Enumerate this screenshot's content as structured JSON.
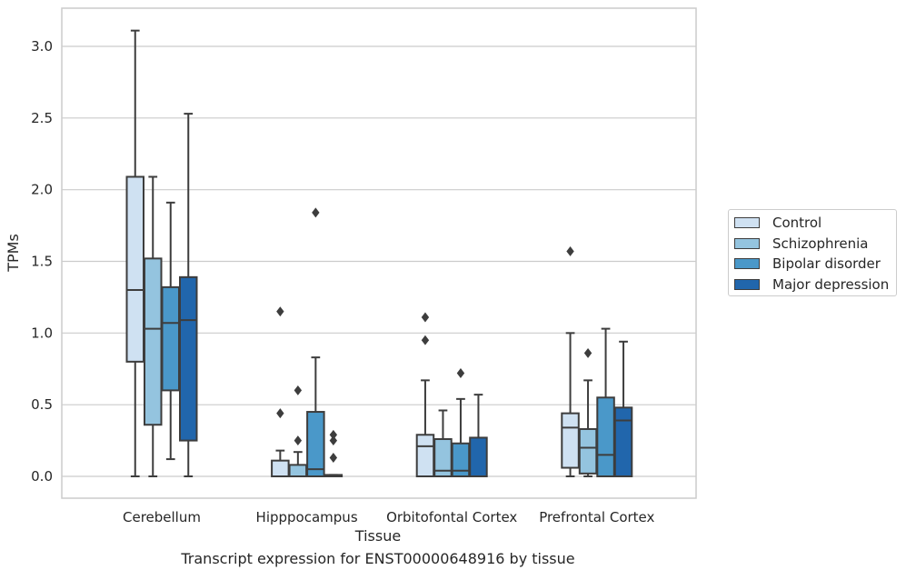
{
  "caption": "Transcript expression for ENST00000648916 by tissue",
  "chart_data": {
    "type": "box",
    "xlabel": "Tissue",
    "ylabel": "TPMs",
    "ylim": [
      -0.15,
      3.25
    ],
    "yticks": [
      0.0,
      0.5,
      1.0,
      1.5,
      2.0,
      2.5,
      3.0
    ],
    "ytick_labels": [
      "0.0",
      "0.5",
      "1.0",
      "1.5",
      "2.0",
      "2.5",
      "3.0"
    ],
    "categories": [
      "Cerebellum",
      "Hipppocampus",
      "Orbitofontal Cortex",
      "Prefrontal Cortex"
    ],
    "grid": "horizontal",
    "legend_position": "outside-right",
    "series": [
      {
        "name": "Control",
        "color": "#cfe1f2",
        "boxes": [
          {
            "min": 0.0,
            "q1": 0.8,
            "median": 1.3,
            "q3": 2.09,
            "max": 3.11,
            "outliers": []
          },
          {
            "min": 0.0,
            "q1": 0.0,
            "median": 0.0,
            "q3": 0.11,
            "max": 0.18,
            "outliers": [
              0.44,
              1.15
            ]
          },
          {
            "min": 0.0,
            "q1": 0.0,
            "median": 0.21,
            "q3": 0.29,
            "max": 0.67,
            "outliers": [
              0.95,
              1.11
            ]
          },
          {
            "min": 0.0,
            "q1": 0.06,
            "median": 0.34,
            "q3": 0.44,
            "max": 1.0,
            "outliers": [
              1.57
            ]
          }
        ]
      },
      {
        "name": "Schizophrenia",
        "color": "#94c4df",
        "boxes": [
          {
            "min": 0.0,
            "q1": 0.36,
            "median": 1.03,
            "q3": 1.52,
            "max": 2.09,
            "outliers": []
          },
          {
            "min": 0.0,
            "q1": 0.0,
            "median": 0.0,
            "q3": 0.08,
            "max": 0.17,
            "outliers": [
              0.25,
              0.6
            ]
          },
          {
            "min": 0.0,
            "q1": 0.0,
            "median": 0.04,
            "q3": 0.26,
            "max": 0.46,
            "outliers": []
          },
          {
            "min": 0.0,
            "q1": 0.02,
            "median": 0.2,
            "q3": 0.33,
            "max": 0.67,
            "outliers": [
              0.86
            ]
          }
        ]
      },
      {
        "name": "Bipolar disorder",
        "color": "#4a98c9",
        "boxes": [
          {
            "min": 0.12,
            "q1": 0.6,
            "median": 1.07,
            "q3": 1.32,
            "max": 1.91,
            "outliers": []
          },
          {
            "min": 0.0,
            "q1": 0.0,
            "median": 0.05,
            "q3": 0.45,
            "max": 0.83,
            "outliers": [
              1.84
            ]
          },
          {
            "min": 0.0,
            "q1": 0.0,
            "median": 0.04,
            "q3": 0.23,
            "max": 0.54,
            "outliers": [
              0.72
            ]
          },
          {
            "min": 0.0,
            "q1": 0.0,
            "median": 0.15,
            "q3": 0.55,
            "max": 1.03,
            "outliers": []
          }
        ]
      },
      {
        "name": "Major depression",
        "color": "#2166ac",
        "boxes": [
          {
            "min": 0.0,
            "q1": 0.25,
            "median": 1.09,
            "q3": 1.39,
            "max": 2.53,
            "outliers": []
          },
          {
            "min": 0.0,
            "q1": 0.0,
            "median": 0.0,
            "q3": 0.01,
            "max": 0.01,
            "outliers": [
              0.13,
              0.25,
              0.29
            ]
          },
          {
            "min": 0.0,
            "q1": 0.0,
            "median": 0.0,
            "q3": 0.27,
            "max": 0.57,
            "outliers": []
          },
          {
            "min": 0.0,
            "q1": 0.0,
            "median": 0.39,
            "q3": 0.48,
            "max": 0.94,
            "outliers": []
          }
        ]
      }
    ]
  }
}
